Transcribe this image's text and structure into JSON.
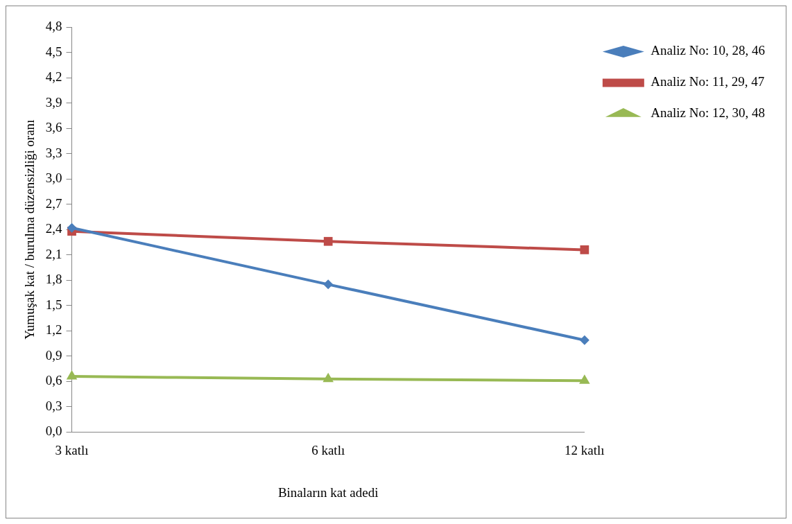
{
  "chart_data": {
    "type": "line",
    "xlabel": "Binaların kat adedi",
    "ylabel": "Yumuşak kat / burulma düzensizliği oranı",
    "categories": [
      "3 katlı",
      "6 katlı",
      "12 katlı"
    ],
    "series": [
      {
        "name": "Analiz No: 10, 28, 46",
        "color": "#4a7ebb",
        "marker": "diamond",
        "values": [
          2.42,
          1.75,
          1.09
        ]
      },
      {
        "name": "Analiz No: 11, 29, 47",
        "color": "#be4b48",
        "marker": "square",
        "values": [
          2.38,
          2.26,
          2.16
        ]
      },
      {
        "name": "Analiz No: 12, 30, 48",
        "color": "#98b954",
        "marker": "triangle",
        "values": [
          0.66,
          0.63,
          0.61
        ]
      }
    ],
    "ylim": [
      0,
      4.8
    ],
    "yticks": [
      {
        "value": 0,
        "label": "0,0"
      },
      {
        "value": 0.3,
        "label": "0,3"
      },
      {
        "value": 0.6,
        "label": "0,6"
      },
      {
        "value": 0.9,
        "label": "0,9"
      },
      {
        "value": 1.2,
        "label": "1,2"
      },
      {
        "value": 1.5,
        "label": "1,5"
      },
      {
        "value": 1.8,
        "label": "1,8"
      },
      {
        "value": 2.1,
        "label": "2,1"
      },
      {
        "value": 2.4,
        "label": "2,4"
      },
      {
        "value": 2.7,
        "label": "2,7"
      },
      {
        "value": 3.0,
        "label": "3,0"
      },
      {
        "value": 3.3,
        "label": "3,3"
      },
      {
        "value": 3.6,
        "label": "3,6"
      },
      {
        "value": 3.9,
        "label": "3,9"
      },
      {
        "value": 4.2,
        "label": "4,2"
      },
      {
        "value": 4.5,
        "label": "4,5"
      },
      {
        "value": 4.8,
        "label": "4,8"
      }
    ],
    "grid": false,
    "legend": "right"
  }
}
